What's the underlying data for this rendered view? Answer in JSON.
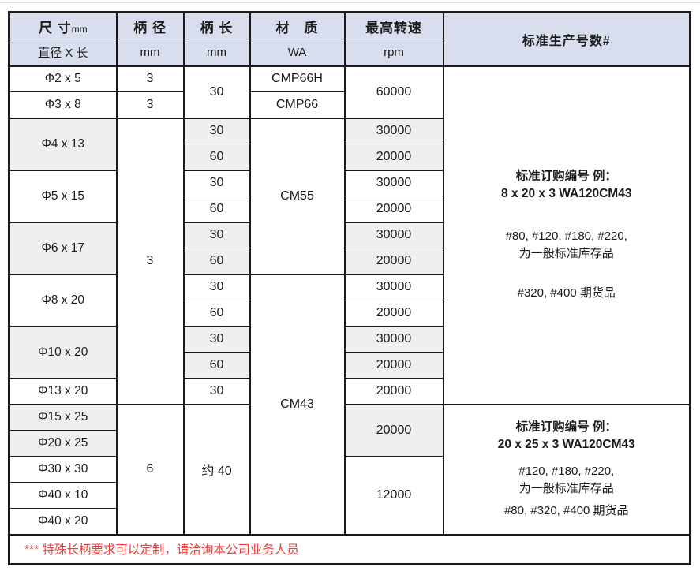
{
  "colors": {
    "header_bg": "#d9deee",
    "alt_row_bg": "#efeff1",
    "border": "#1a1a1a",
    "note_red": "#e8403c"
  },
  "header": {
    "size_title": "尺 寸",
    "size_unit": "mm",
    "size_sub": "直径 X 长",
    "shank_dia_title": "柄 径",
    "shank_dia_sub": "mm",
    "shank_len_title": "柄 长",
    "shank_len_sub": "mm",
    "material_title": "材　质",
    "material_sub": "WA",
    "speed_title": "最高转速",
    "speed_sub": "rpm",
    "std_title": "标准生产号数#"
  },
  "body": {
    "r1": {
      "size": "Φ2 x 5",
      "dia": "3",
      "len": "30",
      "mat": "CMP66H",
      "speed": "60000"
    },
    "r2": {
      "size": "Φ3 x 8",
      "dia": "3",
      "mat": "CMP66"
    },
    "r3": {
      "size": "Φ4 x 13",
      "dia": "3",
      "len": "30",
      "mat": "CM55",
      "speed": "30000"
    },
    "r4": {
      "len": "60",
      "speed": "20000"
    },
    "r5": {
      "size": "Φ5 x 15",
      "len": "30",
      "speed": "30000"
    },
    "r6": {
      "len": "60",
      "speed": "20000"
    },
    "r7": {
      "size": "Φ6 x 17",
      "len": "30",
      "speed": "30000"
    },
    "r8": {
      "len": "60",
      "speed": "20000"
    },
    "r9": {
      "size": "Φ8 x 20",
      "len": "30",
      "mat": "CM43",
      "speed": "30000"
    },
    "r10": {
      "len": "60",
      "speed": "20000"
    },
    "r11": {
      "size": "Φ10 x 20",
      "len": "30",
      "speed": "30000"
    },
    "r12": {
      "len": "60",
      "speed": "20000"
    },
    "r13": {
      "size": "Φ13 x 20",
      "len": "30",
      "speed": "20000"
    },
    "r14": {
      "size": "Φ15 x 25",
      "dia": "6",
      "len": "约 40",
      "speed": "20000"
    },
    "r15": {
      "size": "Φ20 x 25"
    },
    "r16": {
      "size": "Φ30 x 30",
      "speed": "12000"
    },
    "r17": {
      "size": "Φ40 x 10"
    },
    "r18": {
      "size": "Φ40 x 20"
    }
  },
  "notes": {
    "block1": {
      "title1": "标准订购编号 例：",
      "title2": "8 x 20 x 3 WA120CM43",
      "stock1": "#80, #120, #180, #220,",
      "stock2": "为一般标准库存品",
      "futures": "#320, #400 期货品"
    },
    "block2": {
      "title1": "标准订购编号 例：",
      "title2": "20 x 25 x 3 WA120CM43",
      "stock1": "#120, #180, #220,",
      "stock2": "为一般标准库存品",
      "futures": "#80, #320, #400 期货品"
    }
  },
  "footer": {
    "note": "*** 特殊长柄要求可以定制，请洽询本公司业务人员"
  }
}
